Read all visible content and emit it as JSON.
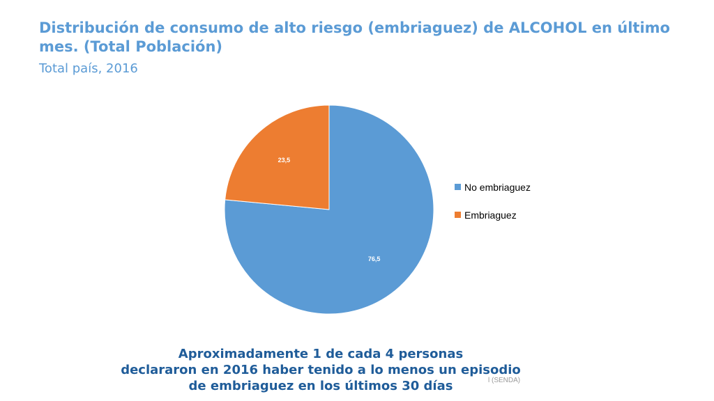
{
  "title": "Distribución de consumo de alto riesgo (embriaguez) de ALCOHOL en último mes. (Total Población)",
  "subtitle": "Total país, 2016",
  "chart_data": {
    "type": "pie",
    "categories": [
      "No embriaguez",
      "Embriaguez"
    ],
    "values": [
      76.5,
      23.5
    ],
    "value_labels": [
      "76,5",
      "23,5"
    ],
    "colors": [
      "#5b9bd5",
      "#ed7d31"
    ],
    "legend": "right"
  },
  "footer": {
    "line1": "Aproximadamente 1 de cada 4 personas",
    "line2": "declararon en 2016 haber tenido a lo menos un episodio",
    "line3": "de embriaguez en los últimos 30 días"
  },
  "source": "l (SENDA)"
}
